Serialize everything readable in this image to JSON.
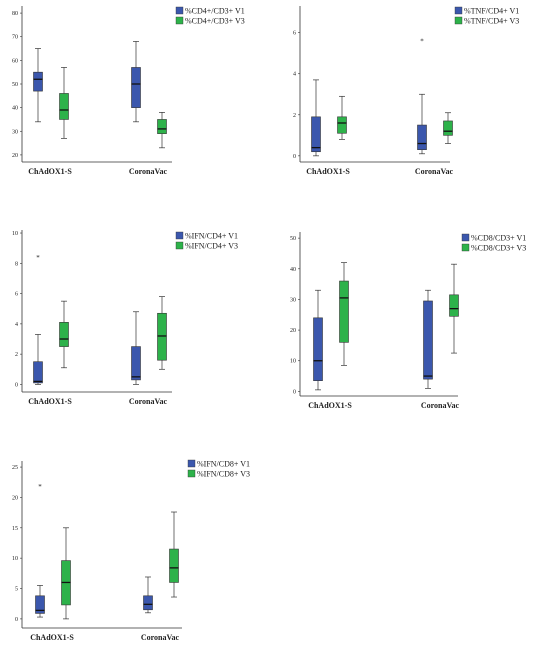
{
  "colors": {
    "v1": "#3b57ad",
    "v3": "#2db24a",
    "axis": "#333333",
    "outlier": "#444444"
  },
  "chart_data": [
    {
      "type": "boxplot",
      "categories": [
        "ChAdOX1-S",
        "CoronaVac"
      ],
      "series": [
        {
          "name": "%CD4+/CD3+ V1",
          "boxes": [
            {
              "whislo": 34,
              "q1": 47,
              "med": 52,
              "q3": 55,
              "whishi": 65
            },
            {
              "whislo": 34,
              "q1": 40,
              "med": 50,
              "q3": 57,
              "whishi": 68
            }
          ]
        },
        {
          "name": "%CD4+/CD3+ V3",
          "boxes": [
            {
              "whislo": 27,
              "q1": 35,
              "med": 39,
              "q3": 46,
              "whishi": 57
            },
            {
              "whislo": 23,
              "q1": 29,
              "med": 31,
              "q3": 35,
              "whishi": 38
            }
          ]
        }
      ],
      "outliers": [],
      "ylim": [
        17,
        83
      ],
      "yticks": [
        20,
        30,
        40,
        50,
        60,
        70,
        80
      ]
    },
    {
      "type": "boxplot",
      "categories": [
        "ChAdOX1-S",
        "CoronaVac"
      ],
      "series": [
        {
          "name": "%TNF/CD4+ V1",
          "boxes": [
            {
              "whislo": 0,
              "q1": 0.2,
              "med": 0.4,
              "q3": 1.9,
              "whishi": 3.7
            },
            {
              "whislo": 0.1,
              "q1": 0.3,
              "med": 0.6,
              "q3": 1.5,
              "whishi": 3
            }
          ]
        },
        {
          "name": "%TNF/CD4+ V3",
          "boxes": [
            {
              "whislo": 0.8,
              "q1": 1.1,
              "med": 1.6,
              "q3": 1.9,
              "whishi": 2.9
            },
            {
              "whislo": 0.6,
              "q1": 1,
              "med": 1.2,
              "q3": 1.7,
              "whishi": 2.1
            }
          ]
        }
      ],
      "outliers": [
        {
          "category": "CoronaVac",
          "series": "%TNF/CD4+ V1",
          "value": 5.6
        }
      ],
      "ylim": [
        -0.3,
        7.3
      ],
      "yticks": [
        0,
        2,
        4,
        6
      ]
    },
    {
      "type": "boxplot",
      "categories": [
        "ChAdOX1-S",
        "CoronaVac"
      ],
      "series": [
        {
          "name": "%IFN/CD4+ V1",
          "boxes": [
            {
              "whislo": 0,
              "q1": 0.1,
              "med": 0.2,
              "q3": 1.5,
              "whishi": 3.3
            },
            {
              "whislo": 0,
              "q1": 0.3,
              "med": 0.5,
              "q3": 2.5,
              "whishi": 4.8
            }
          ]
        },
        {
          "name": "%IFN/CD4+ V3",
          "boxes": [
            {
              "whislo": 1.1,
              "q1": 2.5,
              "med": 3,
              "q3": 4.1,
              "whishi": 5.5
            },
            {
              "whislo": 1,
              "q1": 1.6,
              "med": 3.2,
              "q3": 4.7,
              "whishi": 5.8
            }
          ]
        }
      ],
      "outliers": [
        {
          "category": "ChAdOX1-S",
          "series": "%IFN/CD4+ V1",
          "value": 8.4
        }
      ],
      "ylim": [
        -0.5,
        10.2
      ],
      "yticks": [
        0,
        2,
        4,
        6,
        8,
        10
      ]
    },
    {
      "type": "boxplot",
      "categories": [
        "ChAdOX1-S",
        "CoronaVac"
      ],
      "series": [
        {
          "name": "%CD8/CD3+ V1",
          "boxes": [
            {
              "whislo": 0.5,
              "q1": 3.5,
              "med": 10,
              "q3": 24,
              "whishi": 33
            },
            {
              "whislo": 1,
              "q1": 4,
              "med": 5,
              "q3": 29.5,
              "whishi": 33
            }
          ]
        },
        {
          "name": "%CD8/CD3+ V3",
          "boxes": [
            {
              "whislo": 8.5,
              "q1": 16,
              "med": 30.5,
              "q3": 36,
              "whishi": 42
            },
            {
              "whislo": 12.5,
              "q1": 24.5,
              "med": 27,
              "q3": 31.5,
              "whishi": 41.5
            }
          ]
        }
      ],
      "outliers": [],
      "ylim": [
        -1.5,
        52
      ],
      "yticks": [
        0,
        10,
        20,
        30,
        40,
        50
      ]
    },
    {
      "type": "boxplot",
      "categories": [
        "ChAdOX1-S",
        "CoronaVac"
      ],
      "series": [
        {
          "name": "%IFN/CD8+ V1",
          "boxes": [
            {
              "whislo": 0.3,
              "q1": 0.9,
              "med": 1.4,
              "q3": 3.8,
              "whishi": 5.5
            },
            {
              "whislo": 1,
              "q1": 1.5,
              "med": 2.4,
              "q3": 3.8,
              "whishi": 6.9
            }
          ]
        },
        {
          "name": "%IFN/CD8+ V3",
          "boxes": [
            {
              "whislo": 0,
              "q1": 2.3,
              "med": 6,
              "q3": 9.6,
              "whishi": 15
            },
            {
              "whislo": 3.6,
              "q1": 6,
              "med": 8.4,
              "q3": 11.5,
              "whishi": 17.6
            }
          ]
        }
      ],
      "outliers": [
        {
          "category": "ChAdOX1-S",
          "series": "%IFN/CD8+ V1",
          "value": 21.8
        }
      ],
      "ylim": [
        -1.5,
        26
      ],
      "yticks": [
        0,
        5,
        10,
        15,
        20,
        25
      ]
    }
  ]
}
